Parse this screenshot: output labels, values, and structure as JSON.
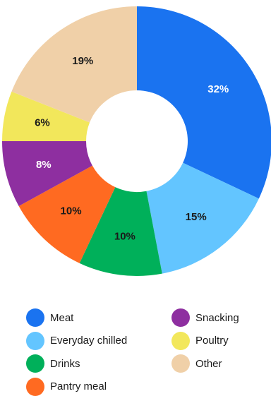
{
  "chart_data": {
    "type": "pie",
    "donut": true,
    "legend": "bottom",
    "slices": [
      {
        "name": "Meat",
        "value": 32,
        "label": "32%",
        "color": "#1a73f0",
        "label_color": "#ffffff"
      },
      {
        "name": "Everyday chilled",
        "value": 15,
        "label": "15%",
        "color": "#63c5ff",
        "label_color": "#1a1a1a"
      },
      {
        "name": "Drinks",
        "value": 10,
        "label": "10%",
        "color": "#00b05a",
        "label_color": "#1a1a1a"
      },
      {
        "name": "Pantry meal",
        "value": 10,
        "label": "10%",
        "color": "#ff6a21",
        "label_color": "#1a1a1a"
      },
      {
        "name": "Snacking",
        "value": 8,
        "label": "8%",
        "color": "#8e2fa0",
        "label_color": "#ffffff"
      },
      {
        "name": "Poultry",
        "value": 6,
        "label": "6%",
        "color": "#f2e75b",
        "label_color": "#1a1a1a"
      },
      {
        "name": "Other",
        "value": 19,
        "label": "19%",
        "color": "#f0d0a8",
        "label_color": "#1a1a1a"
      }
    ]
  },
  "legend": {
    "left": [
      "Meat",
      "Everyday chilled",
      "Drinks",
      "Pantry meal"
    ],
    "right": [
      "Snacking",
      "Poultry",
      "Other"
    ]
  }
}
